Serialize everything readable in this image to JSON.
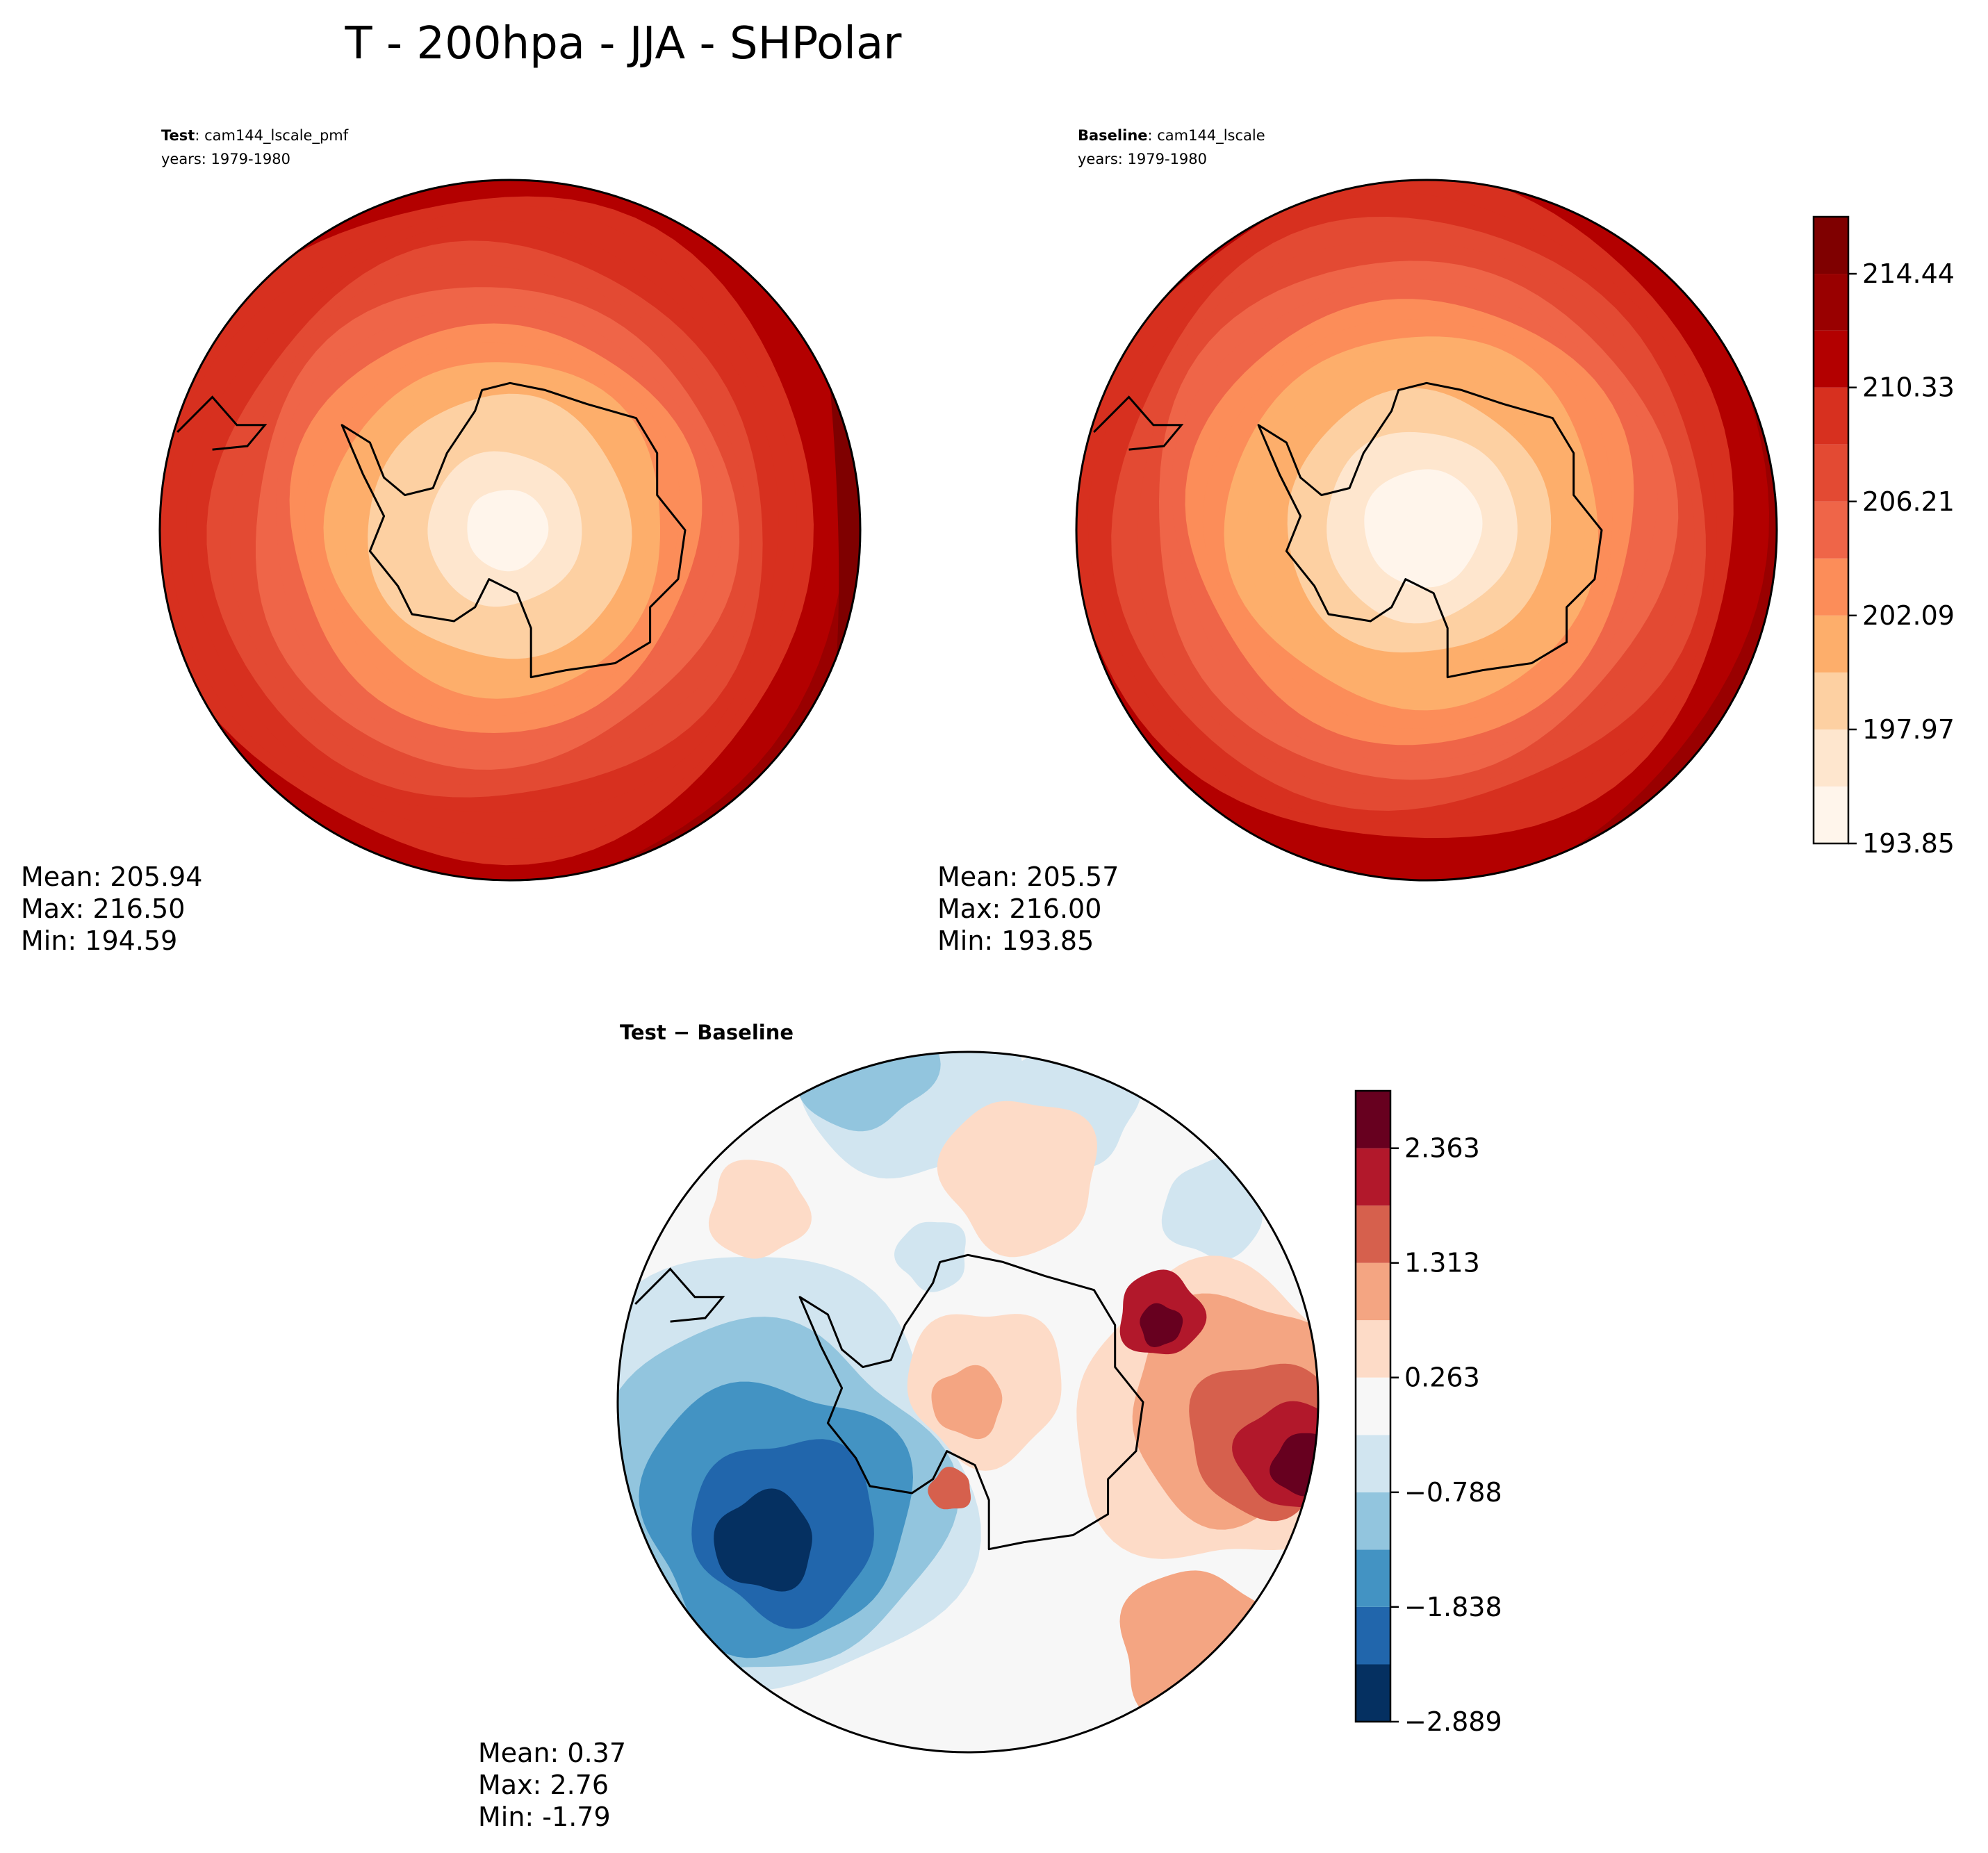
{
  "figure_title": "T - 200hpa - JJA - SHPolar",
  "chart_data": [
    {
      "type": "heatmap",
      "projection": "south-polar-stereographic",
      "panel": "test",
      "label_bold": "Test",
      "label_name": ": cam144_lscale_pmf",
      "years": "years: 1979-1980",
      "stats": [
        "Mean: 205.94",
        "Max: 216.50",
        "Min: 194.59"
      ],
      "mean": 205.94,
      "max": 216.5,
      "min": 194.59,
      "pattern": {
        "center_value": 194.59,
        "edge_value": 216.5,
        "warm_sector": "right"
      }
    },
    {
      "type": "heatmap",
      "projection": "south-polar-stereographic",
      "panel": "baseline",
      "label_bold": "Baseline",
      "label_name": ": cam144_lscale",
      "years": "years: 1979-1980",
      "stats": [
        "Mean: 205.57",
        "Max: 216.00",
        "Min: 193.85"
      ],
      "mean": 205.57,
      "max": 216.0,
      "min": 193.85,
      "pattern": {
        "center_value": 193.85,
        "edge_value": 216.0,
        "warm_sector": "upper-right"
      }
    },
    {
      "type": "heatmap",
      "projection": "south-polar-stereographic",
      "panel": "difference",
      "title": "Test − Baseline",
      "stats": [
        "Mean:  0.37",
        "Max:  2.76",
        "Min: -1.79"
      ],
      "mean": 0.37,
      "max": 2.76,
      "min": -1.79,
      "pattern": {
        "positive_sector": "right",
        "negative_sector": "lower-left"
      }
    }
  ],
  "colorbars": {
    "main": {
      "ticks": [
        "214.44",
        "210.33",
        "206.21",
        "202.09",
        "197.97",
        "193.85"
      ],
      "tick_values": [
        214.44,
        210.33,
        206.21,
        202.09,
        197.97,
        193.85
      ],
      "levels": [
        193.85,
        195.91,
        197.97,
        200.03,
        202.09,
        204.15,
        206.21,
        208.27,
        210.33,
        212.39,
        214.44,
        216.5
      ],
      "colors": [
        "#fff5eb",
        "#fee6ce",
        "#fdd0a2",
        "#fdae6b",
        "#fc8d59",
        "#ef6548",
        "#e34a33",
        "#d7301f",
        "#b30000",
        "#990000",
        "#7f0000"
      ]
    },
    "diff": {
      "ticks": [
        "2.363",
        "1.313",
        "0.263",
        "−0.788",
        "−1.838",
        "−2.889"
      ],
      "tick_values": [
        2.363,
        1.313,
        0.263,
        -0.788,
        -1.838,
        -2.889
      ],
      "levels": [
        -2.889,
        -2.364,
        -1.838,
        -1.313,
        -0.788,
        -0.263,
        0.263,
        0.788,
        1.313,
        1.838,
        2.363,
        2.889
      ],
      "colors": [
        "#053061",
        "#2166ac",
        "#4393c3",
        "#92c5de",
        "#d1e5f0",
        "#f7f7f7",
        "#fddbc7",
        "#f4a582",
        "#d6604d",
        "#b2182b",
        "#67001f"
      ]
    }
  }
}
